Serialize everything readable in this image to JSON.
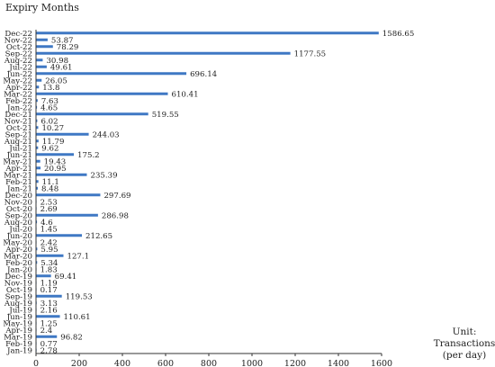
{
  "chart_data": {
    "type": "bar",
    "orientation": "horizontal",
    "title": "",
    "ylabel": "Expiry Months",
    "unit_label": [
      "Unit:",
      "Transactions",
      "(per day)"
    ],
    "categories": [
      "Dec-22",
      "Nov-22",
      "Oct-22",
      "Sep-22",
      "Aug-22",
      "Jul-22",
      "Jun-22",
      "May-22",
      "Apr-22",
      "Mar-22",
      "Feb-22",
      "Jan-22",
      "Dec-21",
      "Nov-21",
      "Oct-21",
      "Sep-21",
      "Aug-21",
      "Jul-21",
      "Jun-21",
      "May-21",
      "Apr-21",
      "Mar-21",
      "Feb-21",
      "Jan-21",
      "Dec-20",
      "Nov-20",
      "Oct-20",
      "Sep-20",
      "Aug-20",
      "Jul-20",
      "Jun-20",
      "May-20",
      "Apr-20",
      "Mar-20",
      "Feb-20",
      "Jan-20",
      "Dec-19",
      "Nov-19",
      "Oct-19",
      "Sep-19",
      "Aug-19",
      "Jul-19",
      "Jun-19",
      "May-19",
      "Apr-19",
      "Mar-19",
      "Feb-19",
      "Jan-19"
    ],
    "values": [
      1586.65,
      53.87,
      78.29,
      1177.55,
      30.98,
      49.61,
      696.14,
      26.05,
      13.8,
      610.41,
      7.63,
      4.65,
      519.55,
      6.02,
      10.27,
      244.03,
      11.79,
      9.62,
      175.2,
      19.43,
      20.95,
      235.39,
      11.1,
      8.48,
      297.69,
      2.53,
      2.69,
      286.98,
      4.6,
      1.45,
      212.65,
      2.42,
      5.95,
      127.1,
      5.34,
      1.83,
      69.41,
      1.19,
      0.17,
      119.53,
      3.13,
      2.16,
      110.61,
      1.25,
      2.4,
      96.82,
      0.77,
      2.78
    ],
    "labels": [
      "1586.65",
      "53.87",
      "78.29",
      "1177.55",
      "30.98",
      "49.61",
      "696.14",
      "26.05",
      "13.8",
      "610.41",
      "7.63",
      "4.65",
      "519.55",
      "6.02",
      "10.27",
      "244.03",
      "11.79",
      "9.62",
      "175.2",
      "19.43",
      "20.95",
      "235.39",
      "11.1",
      "8.48",
      "297.69",
      "2.53",
      "2.69",
      "286.98",
      "4.6",
      "1.45",
      "212.65",
      "2.42",
      "5.95",
      "127.1",
      "5.34",
      "1.83",
      "69.41",
      "1.19",
      "0.17",
      "119.53",
      "3.13",
      "2.16",
      "110.61",
      "1.25",
      "2.4",
      "96.82",
      "0.77",
      "2.78"
    ],
    "xticks": [
      0,
      200,
      400,
      600,
      800,
      1000,
      1200,
      1400,
      1600
    ],
    "xlim": [
      0,
      1600
    ],
    "grid": false,
    "bar_color": "#3f78c4"
  }
}
